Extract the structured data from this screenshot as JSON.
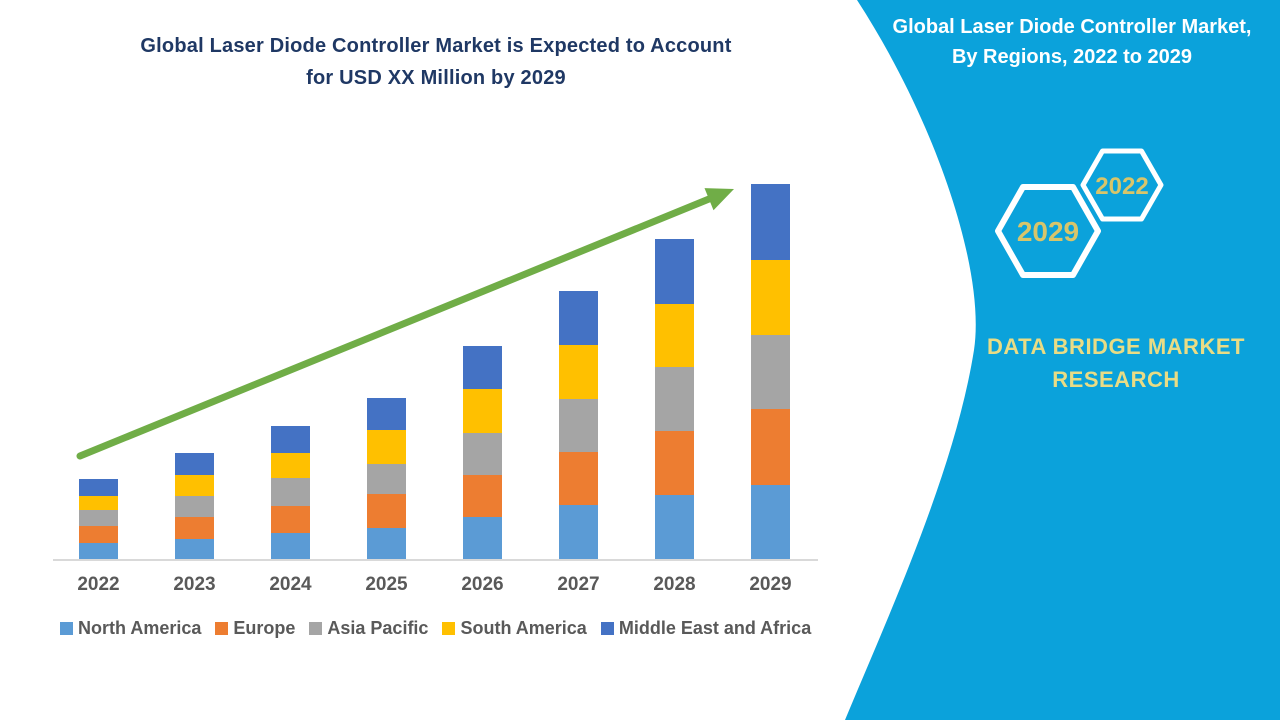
{
  "page": {
    "background": "#ffffff"
  },
  "chart": {
    "title_line1": "Global Laser Diode Controller Market is Expected to Account",
    "title_line2": "for USD XX Million by 2029",
    "title_color": "#1f3864"
  },
  "chart_data": {
    "type": "bar",
    "stacked": true,
    "title": "Global Laser Diode Controller Market is Expected to Account for USD XX Million by 2029",
    "xlabel": "",
    "ylabel": "",
    "value_axis_visible": false,
    "values_unit": "relative size (actual values shown as USD XX Million, not disclosed)",
    "grid": false,
    "legend_position": "bottom",
    "categories": [
      "2022",
      "2023",
      "2024",
      "2025",
      "2026",
      "2027",
      "2028",
      "2029"
    ],
    "series": [
      {
        "name": "North America",
        "color": "#5b9bd5",
        "values": [
          17,
          21,
          27,
          32,
          43,
          55,
          65,
          75
        ]
      },
      {
        "name": "Europe",
        "color": "#ed7d31",
        "values": [
          17,
          22,
          27,
          34,
          42,
          53,
          64,
          76
        ]
      },
      {
        "name": "Asia Pacific",
        "color": "#a5a5a5",
        "values": [
          16,
          21,
          28,
          30,
          42,
          53,
          64,
          74
        ]
      },
      {
        "name": "South America",
        "color": "#ffc000",
        "values": [
          14,
          21,
          25,
          34,
          44,
          54,
          63,
          75
        ]
      },
      {
        "name": "Middle East and Africa",
        "color": "#4472c4",
        "values": [
          17,
          22,
          27,
          32,
          43,
          54,
          65,
          76
        ]
      }
    ],
    "totals": [
      81,
      107,
      134,
      162,
      214,
      269,
      321,
      376
    ],
    "trend_arrow": {
      "from_category": "2022",
      "to_category": "2029",
      "color": "#70ad47",
      "direction": "up-right"
    },
    "axis_line_color": "#d9d9d9",
    "tick_label_color": "#595959"
  },
  "side_panel": {
    "background": "#0ba2db",
    "title_line1": "Global Laser Diode Controller Market,",
    "title_line2": "By Regions, 2022 to 2029",
    "hexagons": [
      {
        "label": "2029"
      },
      {
        "label": "2022"
      }
    ],
    "hexagon_text_color": "#d8c56a",
    "brand": "DATA BRIDGE MARKET RESEARCH",
    "brand_text_color": "#e9dc85"
  }
}
